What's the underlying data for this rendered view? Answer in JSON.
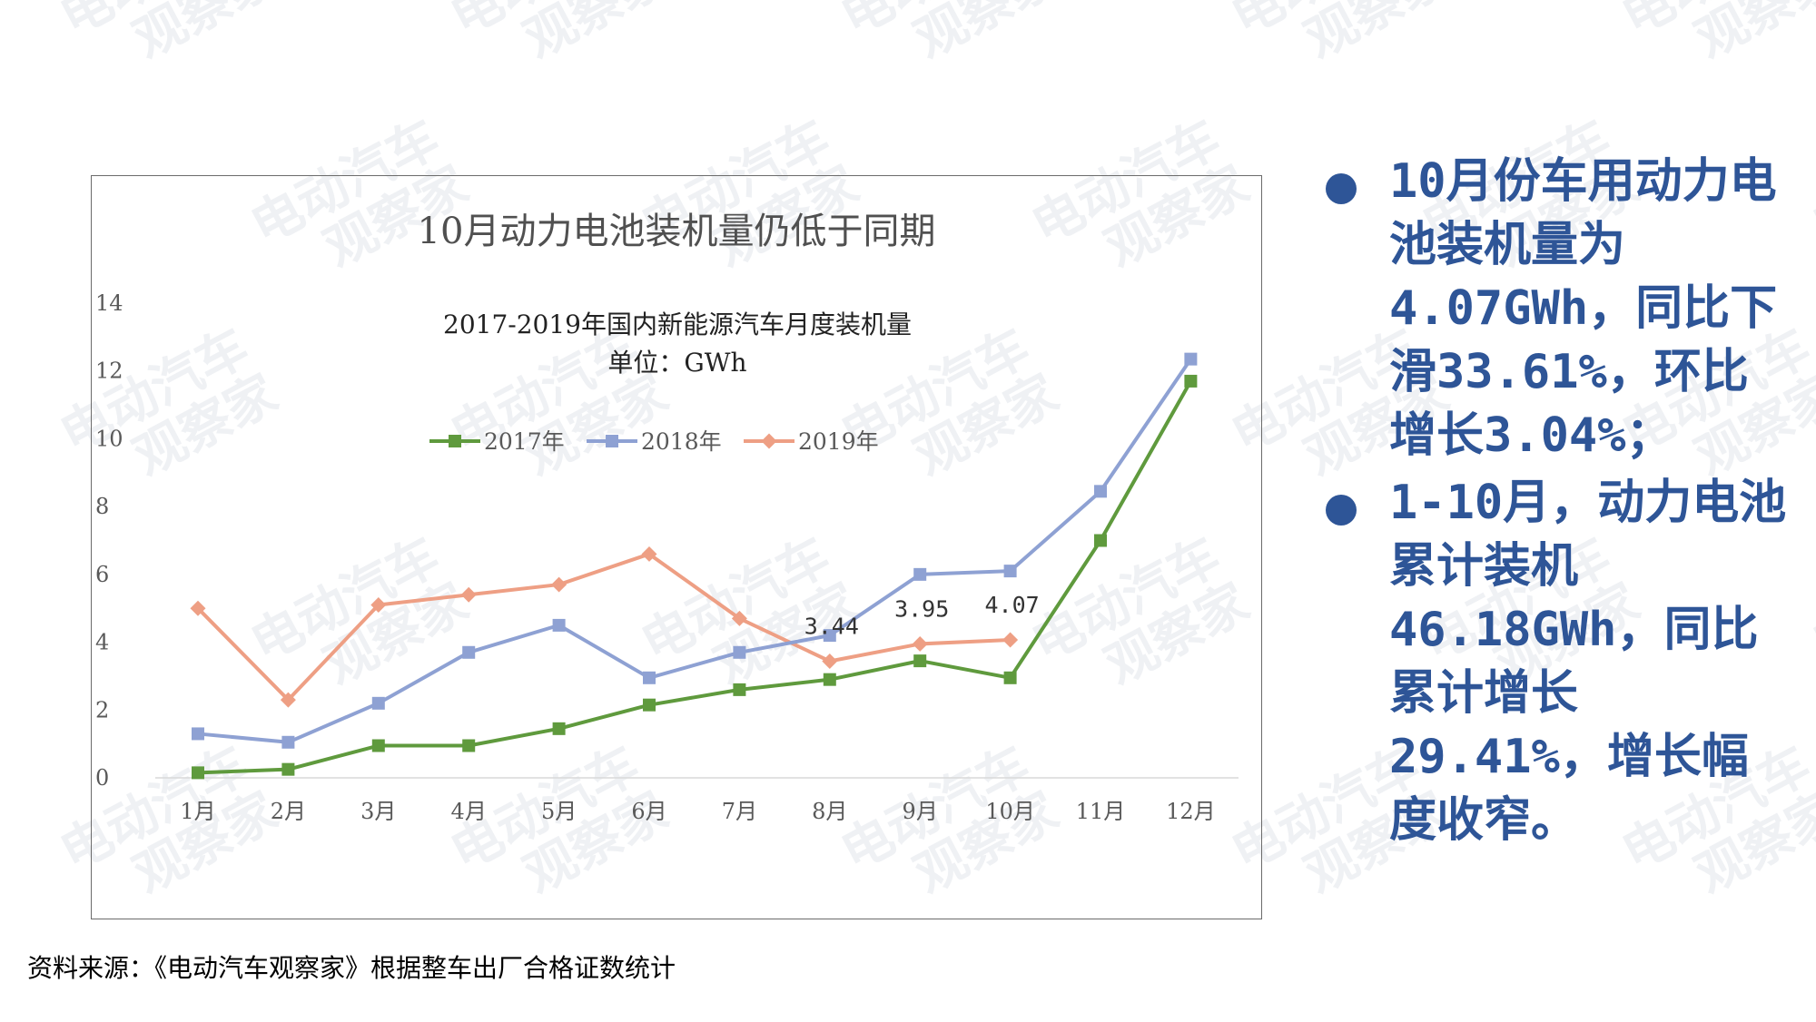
{
  "chart_title": "10月动力电池装机量仍低于同期",
  "watermark_text": "电动汽车观察家",
  "chart_data": {
    "type": "line",
    "subtitle_line1": "2017-2019年国内新能源汽车月度装机量",
    "subtitle_line2": "单位：GWh",
    "categories": [
      "1月",
      "2月",
      "3月",
      "4月",
      "5月",
      "6月",
      "7月",
      "8月",
      "9月",
      "10月",
      "11月",
      "12月"
    ],
    "ylim": [
      0,
      14
    ],
    "yticks": [
      "0",
      "2",
      "4",
      "6",
      "8",
      "10",
      "12",
      "14"
    ],
    "legend_position": "top-center",
    "series": [
      {
        "name": "2017年",
        "color": "#5f9a3d",
        "marker": "square",
        "values": [
          0.15,
          0.25,
          0.95,
          0.95,
          1.45,
          2.15,
          2.6,
          2.9,
          3.45,
          2.95,
          7.0,
          11.7
        ]
      },
      {
        "name": "2018年",
        "color": "#8ea1d3",
        "marker": "square",
        "values": [
          1.3,
          1.05,
          2.2,
          3.7,
          4.5,
          2.95,
          3.7,
          4.2,
          6.0,
          6.1,
          8.45,
          12.35
        ]
      },
      {
        "name": "2019年",
        "color": "#ee9f84",
        "marker": "diamond",
        "values": [
          5.0,
          2.3,
          5.1,
          5.4,
          5.7,
          6.6,
          4.7,
          3.44,
          3.95,
          4.07,
          null,
          null
        ]
      }
    ],
    "annotations": [
      {
        "category": "8月",
        "label": "3.44"
      },
      {
        "category": "9月",
        "label": "3.95"
      },
      {
        "category": "10月",
        "label": "4.07"
      }
    ]
  },
  "side_notes": [
    "10月份车用动力电池装机量为4.07GWh，同比下滑33.61%，环比增长3.04%；",
    "1-10月，动力电池累计装机46.18GWh，同比累计增长29.41%，增长幅度收窄。"
  ],
  "source_note": "资料来源：《电动汽车观察家》根据整车出厂合格证数统计"
}
